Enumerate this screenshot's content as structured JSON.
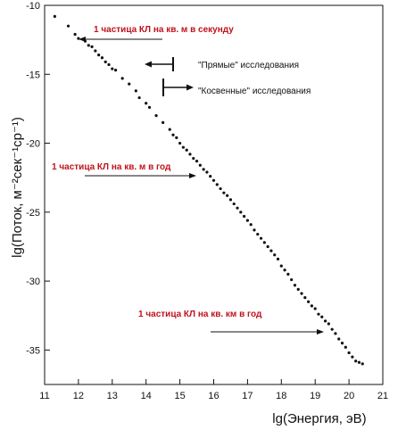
{
  "chart_data": {
    "type": "scatter",
    "title": "",
    "xlabel": "lg(Энергия, эВ)",
    "ylabel": "lg(Поток, м⁻²сек⁻¹ср⁻¹)",
    "xlim": [
      11,
      21
    ],
    "ylim": [
      -37.5,
      -10
    ],
    "x_ticks": [
      11,
      12,
      13,
      14,
      15,
      16,
      17,
      18,
      19,
      20,
      21
    ],
    "y_ticks": [
      -10,
      -15,
      -20,
      -25,
      -30,
      -35
    ],
    "grid": false,
    "series": [
      {
        "points": [
          [
            11.3,
            -10.8
          ],
          [
            11.7,
            -11.5
          ],
          [
            11.9,
            -12.1
          ],
          [
            12.0,
            -12.4
          ],
          [
            12.2,
            -12.6
          ],
          [
            12.3,
            -12.9
          ],
          [
            12.4,
            -13.0
          ],
          [
            12.5,
            -13.3
          ],
          [
            12.6,
            -13.6
          ],
          [
            12.7,
            -13.8
          ],
          [
            12.8,
            -14.1
          ],
          [
            12.9,
            -14.3
          ],
          [
            13.0,
            -14.6
          ],
          [
            13.1,
            -14.7
          ],
          [
            13.3,
            -15.3
          ],
          [
            13.5,
            -15.7
          ],
          [
            13.7,
            -16.2
          ],
          [
            13.8,
            -16.7
          ],
          [
            14.0,
            -17.1
          ],
          [
            14.1,
            -17.4
          ],
          [
            14.3,
            -18.0
          ],
          [
            14.5,
            -18.5
          ],
          [
            14.7,
            -19.0
          ],
          [
            14.8,
            -19.4
          ],
          [
            14.9,
            -19.6
          ],
          [
            15.0,
            -20.0
          ],
          [
            15.1,
            -20.3
          ],
          [
            15.2,
            -20.5
          ],
          [
            15.3,
            -20.8
          ],
          [
            15.4,
            -21.1
          ],
          [
            15.5,
            -21.3
          ],
          [
            15.6,
            -21.6
          ],
          [
            15.7,
            -21.9
          ],
          [
            15.8,
            -22.1
          ],
          [
            15.9,
            -22.4
          ],
          [
            16.0,
            -22.7
          ],
          [
            16.1,
            -23.0
          ],
          [
            16.2,
            -23.3
          ],
          [
            16.3,
            -23.6
          ],
          [
            16.4,
            -23.8
          ],
          [
            16.5,
            -24.1
          ],
          [
            16.6,
            -24.4
          ],
          [
            16.7,
            -24.7
          ],
          [
            16.8,
            -25.0
          ],
          [
            16.9,
            -25.3
          ],
          [
            17.0,
            -25.6
          ],
          [
            17.1,
            -25.9
          ],
          [
            17.2,
            -26.3
          ],
          [
            17.3,
            -26.6
          ],
          [
            17.4,
            -26.9
          ],
          [
            17.5,
            -27.2
          ],
          [
            17.6,
            -27.5
          ],
          [
            17.7,
            -27.8
          ],
          [
            17.8,
            -28.1
          ],
          [
            17.9,
            -28.4
          ],
          [
            18.0,
            -28.9
          ],
          [
            18.1,
            -29.2
          ],
          [
            18.2,
            -29.5
          ],
          [
            18.3,
            -29.9
          ],
          [
            18.4,
            -30.3
          ],
          [
            18.5,
            -30.6
          ],
          [
            18.6,
            -30.9
          ],
          [
            18.7,
            -31.2
          ],
          [
            18.8,
            -31.5
          ],
          [
            18.9,
            -31.8
          ],
          [
            19.0,
            -32.0
          ],
          [
            19.1,
            -32.4
          ],
          [
            19.2,
            -32.6
          ],
          [
            19.3,
            -32.9
          ],
          [
            19.4,
            -33.1
          ],
          [
            19.5,
            -33.5
          ],
          [
            19.6,
            -33.8
          ],
          [
            19.7,
            -34.2
          ],
          [
            19.8,
            -34.5
          ],
          [
            19.9,
            -34.8
          ],
          [
            20.0,
            -35.2
          ],
          [
            20.1,
            -35.5
          ],
          [
            20.2,
            -35.8
          ],
          [
            20.3,
            -35.9
          ],
          [
            20.4,
            -36.0
          ]
        ]
      }
    ],
    "annotations": [
      {
        "text": "1 частица КЛ на кв. м в секунду",
        "color": "#c0121c"
      },
      {
        "text": "\"Прямые\" исследования",
        "color": "#111111"
      },
      {
        "text": "\"Косвенные\" исследования",
        "color": "#111111"
      },
      {
        "text": "1 частица КЛ на кв. м в  год",
        "color": "#c0121c"
      },
      {
        "text": "1 частица КЛ на кв.   км в год",
        "color": "#c0121c"
      }
    ]
  }
}
